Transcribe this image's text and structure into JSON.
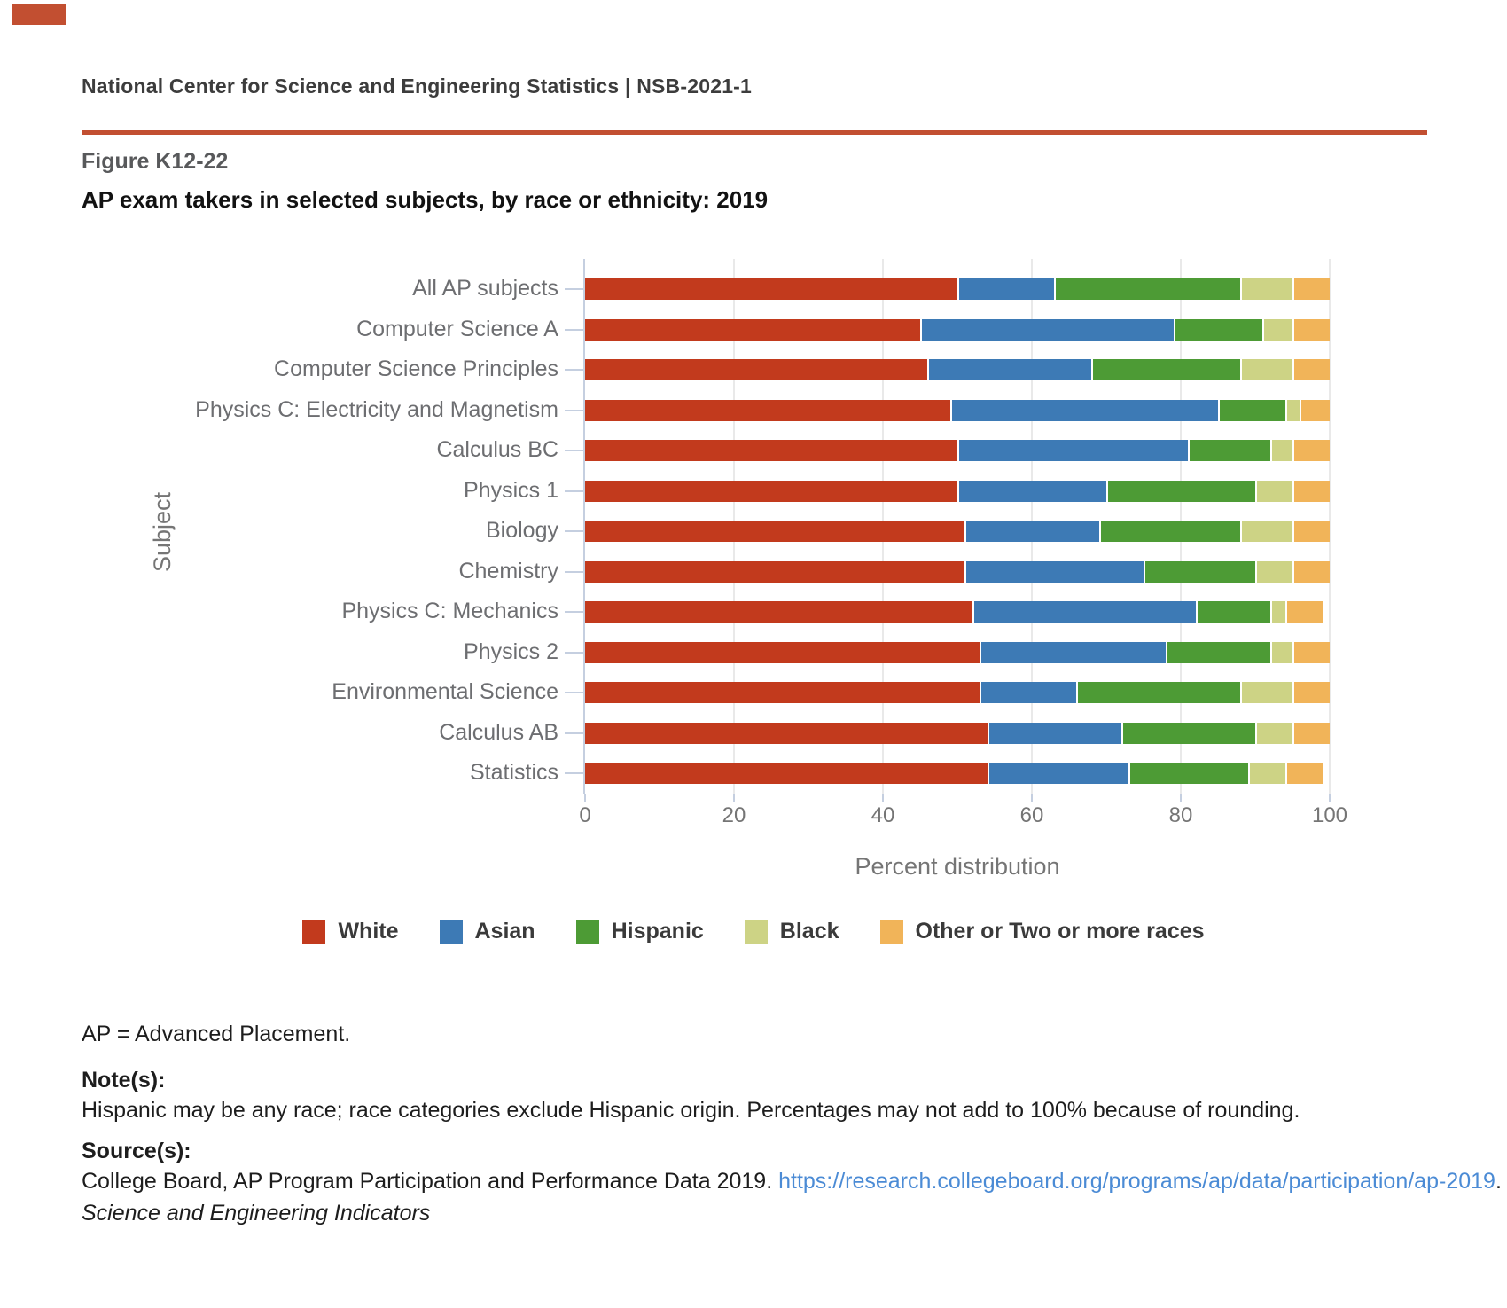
{
  "page": {
    "brand_color": "#c24f31",
    "header_text": "National Center for Science and Engineering Statistics  |  NSB-2021-1",
    "figure_label": "Figure K12-22",
    "title": "AP exam takers in selected subjects, by race or ethnicity: 2019"
  },
  "chart_data": {
    "type": "bar",
    "orientation": "horizontal",
    "stacked": true,
    "title": "AP exam takers in selected subjects, by race or ethnicity: 2019",
    "xlabel": "Percent distribution",
    "ylabel": "Subject",
    "xlim": [
      0,
      100
    ],
    "x_ticks": [
      0,
      20,
      40,
      60,
      80,
      100
    ],
    "grid": true,
    "legend_position": "bottom",
    "categories": [
      "All AP subjects",
      "Computer Science A",
      "Computer Science Principles",
      "Physics C: Electricity and Magnetism",
      "Calculus BC",
      "Physics 1",
      "Biology",
      "Chemistry",
      "Physics C: Mechanics",
      "Physics 2",
      "Environmental Science",
      "Calculus AB",
      "Statistics"
    ],
    "series": [
      {
        "name": "White",
        "color": "#c23a1d",
        "values": [
          50,
          45,
          46,
          49,
          50,
          50,
          51,
          51,
          52,
          53,
          53,
          54,
          54
        ]
      },
      {
        "name": "Asian",
        "color": "#3d7ab5",
        "values": [
          13,
          34,
          22,
          36,
          31,
          20,
          18,
          24,
          30,
          25,
          13,
          18,
          19
        ]
      },
      {
        "name": "Hispanic",
        "color": "#4d9b35",
        "values": [
          25,
          12,
          20,
          9,
          11,
          20,
          19,
          15,
          10,
          14,
          22,
          18,
          16
        ]
      },
      {
        "name": "Black",
        "color": "#cdd385",
        "values": [
          7,
          4,
          7,
          2,
          3,
          5,
          7,
          5,
          2,
          3,
          7,
          5,
          5
        ]
      },
      {
        "name": "Other or Two or more races",
        "color": "#f1b459",
        "values": [
          5,
          5,
          5,
          4,
          5,
          5,
          5,
          5,
          5,
          5,
          5,
          5,
          5
        ]
      }
    ]
  },
  "footnotes": {
    "abbreviation": "AP = Advanced Placement.",
    "notes_heading": "Note(s):",
    "notes_text": "Hispanic may be any race; race categories exclude Hispanic origin. Percentages may not add to 100% because of rounding.",
    "sources_heading": "Source(s):",
    "sources_text": "College Board, AP Program Participation and Performance Data 2019. ",
    "sources_link": "https://research.collegeboard.org/programs/ap/data/participation/ap-2019",
    "sources_suffix": ".",
    "publication": "Science and Engineering Indicators"
  }
}
